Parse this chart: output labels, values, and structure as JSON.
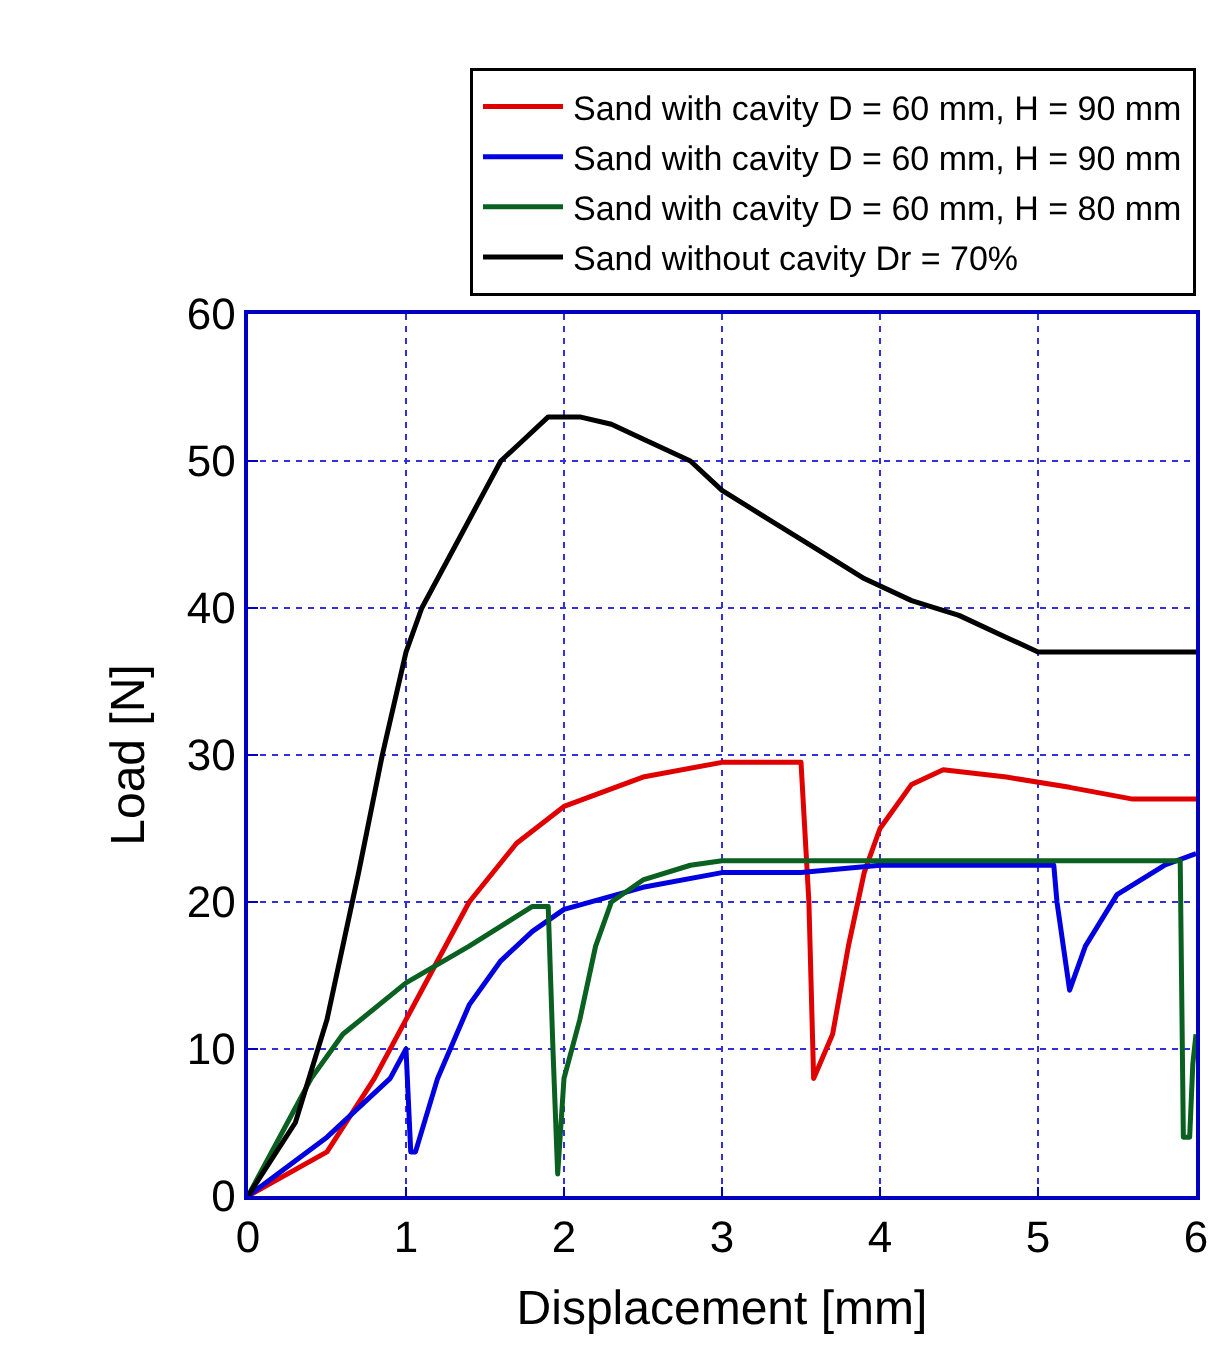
{
  "chart_data": {
    "type": "line",
    "xlabel": "Displacement [mm]",
    "ylabel": "Load [N]",
    "xlim": [
      0,
      6
    ],
    "xticks": [
      0,
      1,
      2,
      3,
      4,
      5,
      6
    ],
    "ylim": [
      0,
      60
    ],
    "yticks": [
      0,
      10,
      20,
      30,
      40,
      50,
      60
    ],
    "grid": true,
    "legend": "top right",
    "line_style": "solid",
    "marker": "none",
    "series": [
      {
        "name": "Sand with cavity D = 60 mm, H = 90 mm",
        "color": "#e00000",
        "x": [
          0,
          0.5,
          0.8,
          1,
          1.2,
          1.4,
          1.7,
          2,
          2.5,
          3,
          3.5,
          3.55,
          3.58,
          3.7,
          3.8,
          3.9,
          4.0,
          4.2,
          4.4,
          4.8,
          5.2,
          5.6,
          6
        ],
        "values": [
          0,
          3,
          8,
          12,
          16,
          20,
          24,
          26.5,
          28.5,
          29.5,
          29.5,
          20,
          8,
          11,
          17,
          22,
          25,
          28,
          29,
          28.5,
          27.8,
          27,
          27
        ]
      },
      {
        "name": "Sand with cavity D = 60 mm, H = 90 mm",
        "color": "#0000e0",
        "x": [
          0,
          0.5,
          0.9,
          1,
          1.03,
          1.06,
          1.2,
          1.4,
          1.6,
          1.8,
          2,
          2.5,
          3,
          3.5,
          4,
          4.5,
          5.1,
          5.12,
          5.2,
          5.3,
          5.5,
          5.8,
          6
        ],
        "values": [
          0,
          4,
          8,
          10,
          3,
          3,
          8,
          13,
          16,
          18,
          19.5,
          21,
          22,
          22,
          22.5,
          22.5,
          22.5,
          20,
          14,
          17,
          20.5,
          22.5,
          23.3
        ]
      },
      {
        "name": "Sand with cavity D = 60 mm, H = 80 mm",
        "color": "#0a6020",
        "x": [
          0,
          0.2,
          0.4,
          0.6,
          1,
          1.4,
          1.8,
          1.9,
          1.93,
          1.96,
          2,
          2.1,
          2.2,
          2.3,
          2.5,
          2.8,
          3,
          4,
          5,
          5.9,
          5.92,
          5.96,
          5.98,
          6
        ],
        "values": [
          0,
          4,
          8,
          11,
          14.5,
          17,
          19.7,
          19.7,
          10,
          1.5,
          8,
          12,
          17,
          20,
          21.5,
          22.5,
          22.8,
          22.8,
          22.8,
          22.8,
          4,
          4,
          9,
          11
        ]
      },
      {
        "name": "Sand without cavity Dr = 70%",
        "color": "#000000",
        "x": [
          0,
          0.3,
          0.5,
          0.7,
          0.85,
          1,
          1.1,
          1.3,
          1.5,
          1.6,
          1.75,
          1.9,
          2.1,
          2.3,
          2.5,
          2.8,
          3,
          3.3,
          3.6,
          3.9,
          4.2,
          4.5,
          4.8,
          5.0,
          5.5,
          6
        ],
        "values": [
          0,
          5,
          12,
          22,
          30,
          37,
          40,
          44,
          48,
          50,
          51.5,
          53,
          53,
          52.5,
          51.5,
          50,
          48,
          46,
          44,
          42,
          40.5,
          39.5,
          38,
          37,
          37,
          37
        ]
      }
    ]
  }
}
